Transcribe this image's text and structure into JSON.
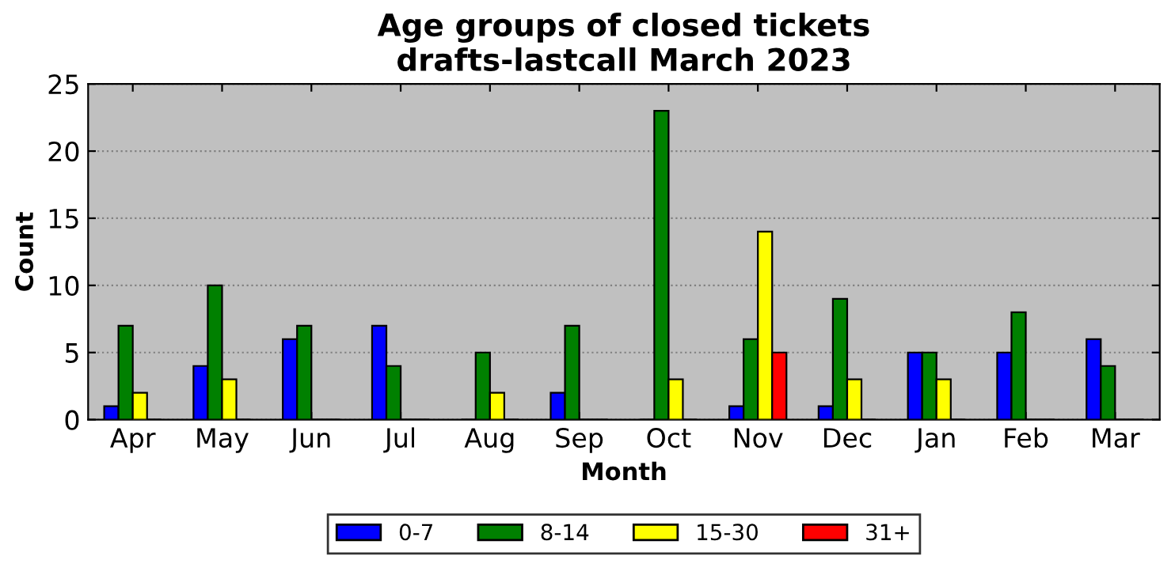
{
  "chart_data": {
    "type": "bar",
    "title": "Age groups of closed tickets\ndrafts-lastcall March 2023",
    "xlabel": "Month",
    "ylabel": "Count",
    "categories": [
      "Apr",
      "May",
      "Jun",
      "Jul",
      "Aug",
      "Sep",
      "Oct",
      "Nov",
      "Dec",
      "Jan",
      "Feb",
      "Mar"
    ],
    "series": [
      {
        "name": "0-7",
        "color": "#0000ff",
        "values": [
          1,
          4,
          6,
          7,
          0,
          2,
          0,
          1,
          1,
          5,
          5,
          6
        ]
      },
      {
        "name": "8-14",
        "color": "#008000",
        "values": [
          7,
          10,
          7,
          4,
          5,
          7,
          23,
          6,
          9,
          5,
          8,
          4
        ]
      },
      {
        "name": "15-30",
        "color": "#ffff00",
        "values": [
          2,
          3,
          0,
          0,
          2,
          0,
          3,
          14,
          3,
          3,
          0,
          0
        ]
      },
      {
        "name": "31+",
        "color": "#ff0000",
        "values": [
          0,
          0,
          0,
          0,
          0,
          0,
          0,
          5,
          0,
          0,
          0,
          0
        ]
      }
    ],
    "ylim": [
      0,
      25
    ],
    "yticks": [
      0,
      5,
      10,
      15,
      20,
      25
    ],
    "grid": "y",
    "legend": "bottom"
  }
}
